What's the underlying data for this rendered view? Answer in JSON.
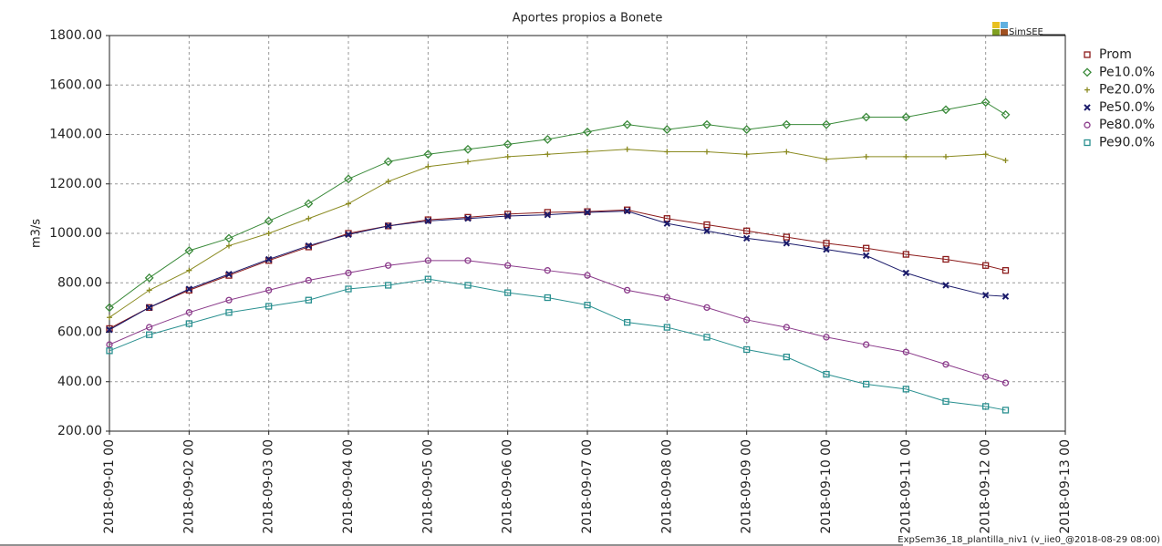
{
  "chart_data": {
    "type": "line",
    "title": "Aportes propios a Bonete",
    "ylabel": "m3/s",
    "logo": "SimSEE",
    "footer": "ExpSem36_18_plantilla_niv1 (v_iie0_@2018-08-29 08:00)",
    "grid": true,
    "legend": "right",
    "x": [
      "2018-09-01 00",
      "2018-09-01 12",
      "2018-09-02 00",
      "2018-09-02 12",
      "2018-09-03 00",
      "2018-09-03 12",
      "2018-09-04 00",
      "2018-09-04 12",
      "2018-09-05 00",
      "2018-09-05 12",
      "2018-09-06 00",
      "2018-09-06 12",
      "2018-09-07 00",
      "2018-09-07 12",
      "2018-09-08 00",
      "2018-09-08 12",
      "2018-09-09 00",
      "2018-09-09 12",
      "2018-09-10 00",
      "2018-09-10 12",
      "2018-09-11 00",
      "2018-09-11 12",
      "2018-09-12 00",
      "2018-09-12 06"
    ],
    "xlim": [
      "2018-09-01 00",
      "2018-09-13 00"
    ],
    "xticks": [
      "2018-09-01 00",
      "2018-09-02 00",
      "2018-09-03 00",
      "2018-09-04 00",
      "2018-09-05 00",
      "2018-09-06 00",
      "2018-09-07 00",
      "2018-09-08 00",
      "2018-09-09 00",
      "2018-09-10 00",
      "2018-09-11 00",
      "2018-09-12 00",
      "2018-09-13 00"
    ],
    "ylim": [
      200,
      1800
    ],
    "yticks": [
      {
        "value": 200,
        "label": "200.00"
      },
      {
        "value": 400,
        "label": "400.00"
      },
      {
        "value": 600,
        "label": "600.00"
      },
      {
        "value": 800,
        "label": "800.00"
      },
      {
        "value": 1000,
        "label": "1000.00"
      },
      {
        "value": 1200,
        "label": "1200.00"
      },
      {
        "value": 1400,
        "label": "1400.00"
      },
      {
        "value": 1600,
        "label": "1600.00"
      },
      {
        "value": 1800,
        "label": "1800.00"
      }
    ],
    "series": [
      {
        "name": "Prom",
        "color": "#8b1a1a",
        "marker": "square",
        "values": [
          615,
          700,
          770,
          830,
          890,
          945,
          1000,
          1030,
          1055,
          1065,
          1078,
          1085,
          1088,
          1095,
          1060,
          1035,
          1010,
          985,
          960,
          940,
          915,
          895,
          870,
          850
        ]
      },
      {
        "name": "Pe10.0%",
        "color": "#3a8a3a",
        "marker": "diamond",
        "values": [
          700,
          820,
          930,
          980,
          1050,
          1120,
          1220,
          1290,
          1320,
          1340,
          1360,
          1380,
          1410,
          1440,
          1420,
          1440,
          1420,
          1440,
          1440,
          1470,
          1470,
          1500,
          1530,
          1480
        ]
      },
      {
        "name": "Pe20.0%",
        "color": "#8a8a20",
        "marker": "plus",
        "values": [
          660,
          770,
          850,
          950,
          1000,
          1060,
          1120,
          1210,
          1270,
          1290,
          1310,
          1320,
          1330,
          1340,
          1330,
          1330,
          1320,
          1330,
          1300,
          1310,
          1310,
          1310,
          1320,
          1295
        ]
      },
      {
        "name": "Pe50.0%",
        "color": "#1a1a6a",
        "marker": "cross",
        "values": [
          610,
          700,
          775,
          835,
          895,
          950,
          995,
          1030,
          1050,
          1060,
          1070,
          1075,
          1085,
          1090,
          1040,
          1010,
          980,
          960,
          935,
          910,
          840,
          790,
          750,
          745
        ]
      },
      {
        "name": "Pe80.0%",
        "color": "#8a3a8a",
        "marker": "circle",
        "values": [
          550,
          620,
          680,
          730,
          770,
          810,
          840,
          870,
          890,
          890,
          870,
          850,
          830,
          770,
          740,
          700,
          650,
          620,
          580,
          550,
          520,
          470,
          420,
          395
        ]
      },
      {
        "name": "Pe90.0%",
        "color": "#2a9090",
        "marker": "square",
        "values": [
          525,
          590,
          635,
          680,
          705,
          730,
          775,
          790,
          815,
          790,
          760,
          740,
          710,
          640,
          620,
          580,
          530,
          500,
          430,
          390,
          370,
          320,
          300,
          285
        ]
      }
    ]
  }
}
